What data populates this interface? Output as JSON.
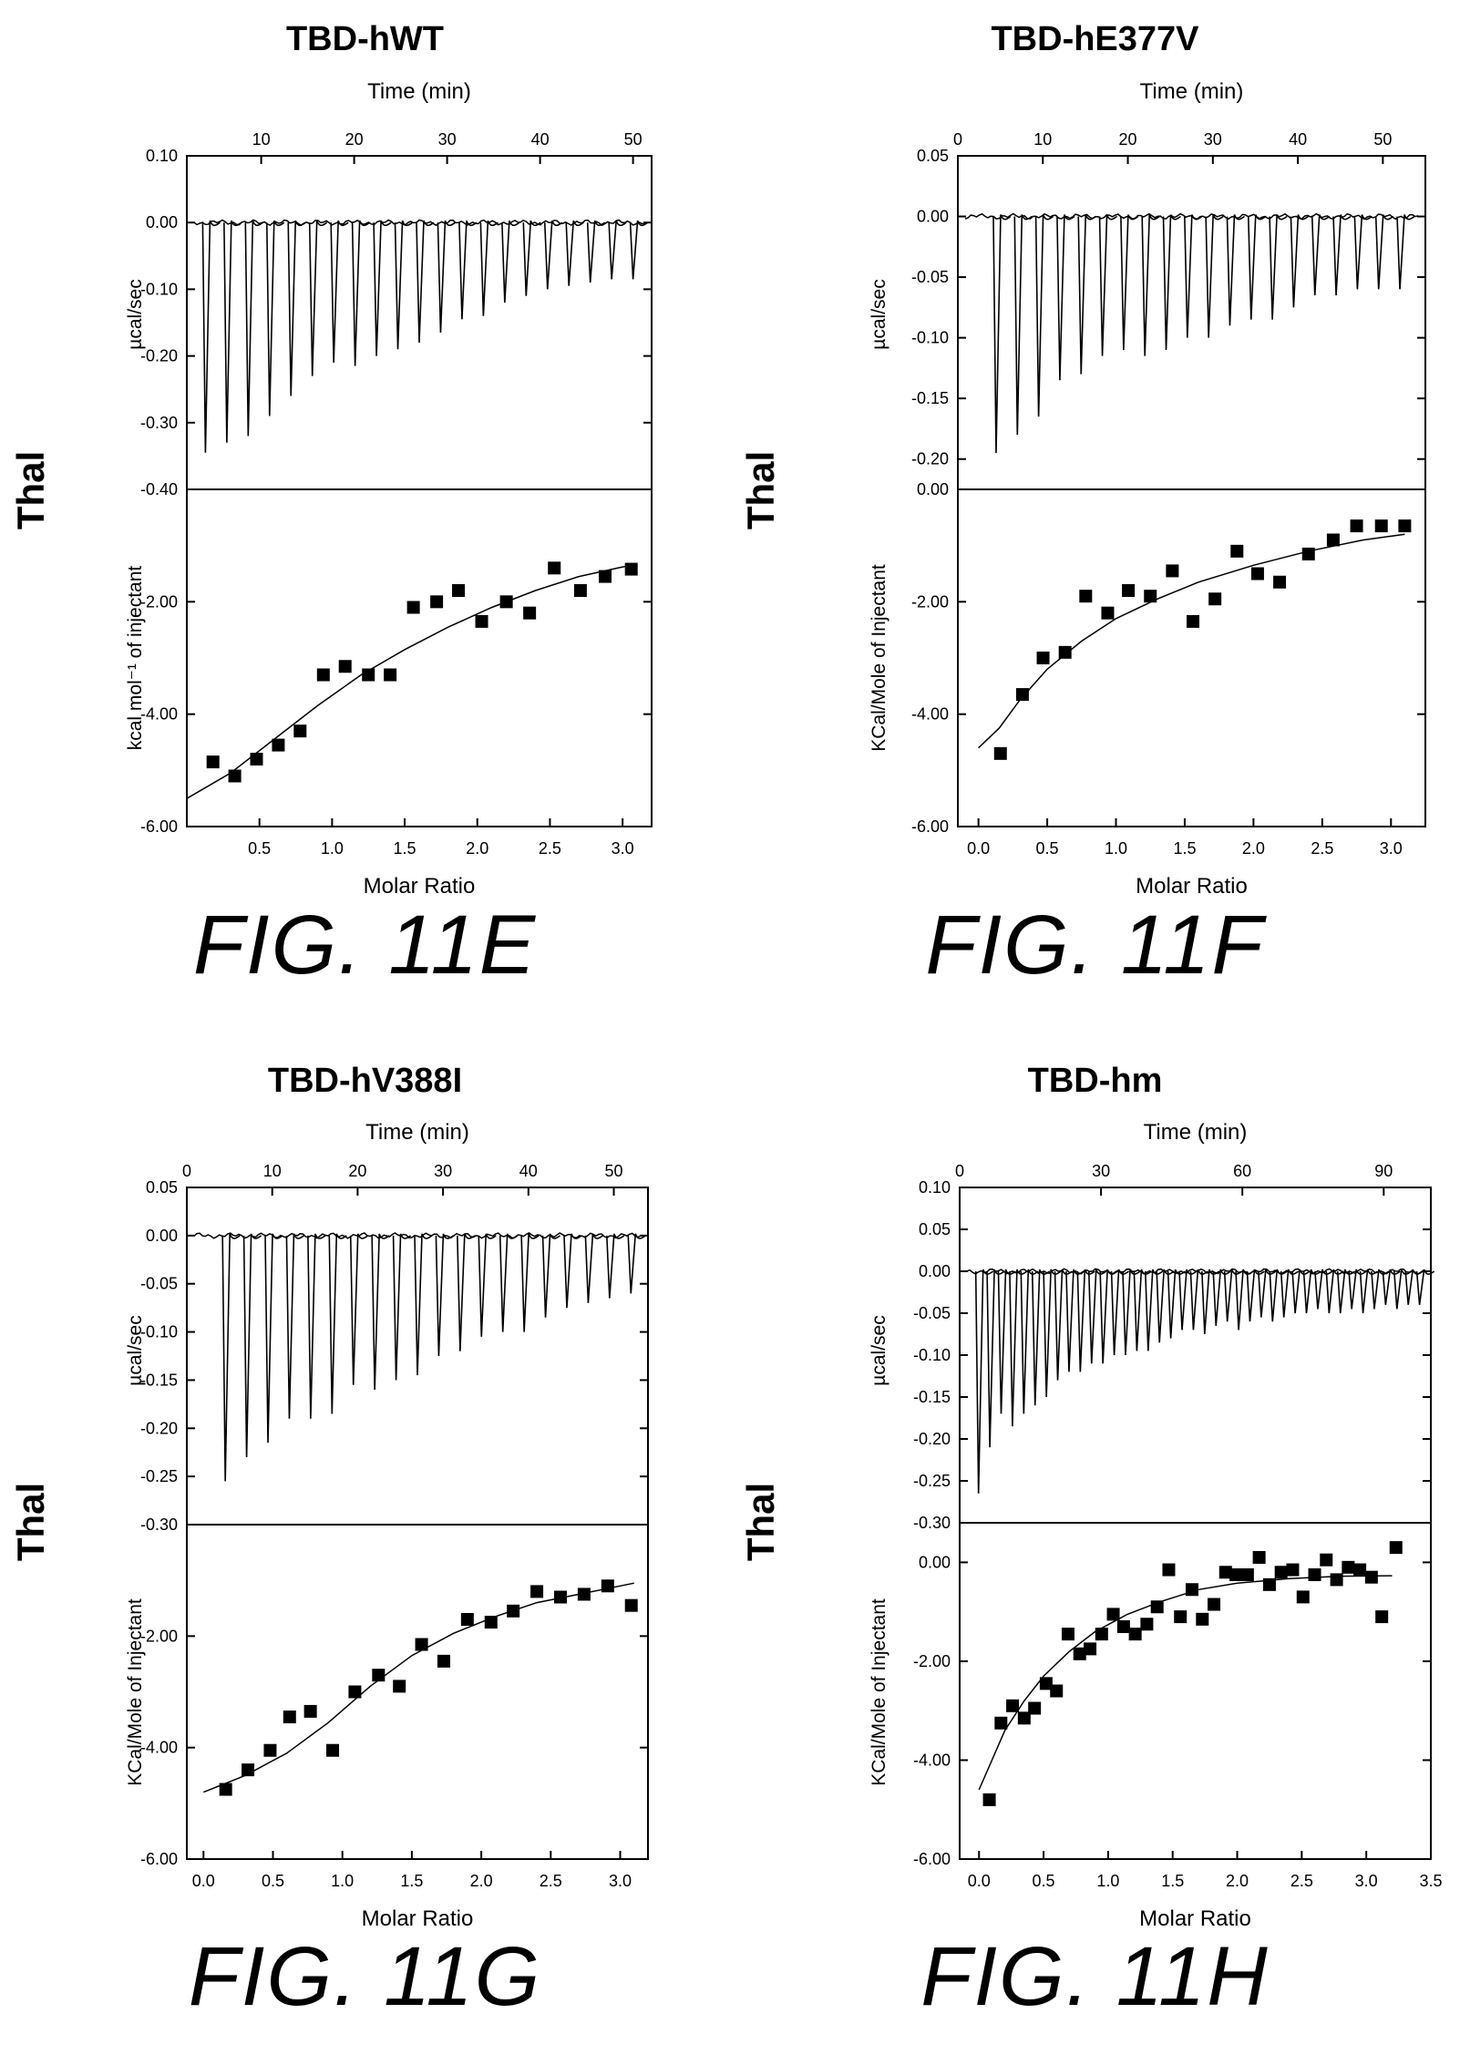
{
  "panels": [
    {
      "title": "TBD-hWT",
      "figure_label": "FIG. 11E",
      "row_label": "Thal",
      "top": {
        "xlabel": "Time (min)",
        "xlim": [
          2,
          52
        ],
        "xticks": [
          10,
          20,
          30,
          40,
          50
        ],
        "xticklabels": [
          "10",
          "20",
          "30",
          "40",
          "50"
        ],
        "ylabel": "µcal/sec",
        "ylim": [
          -0.4,
          0.1
        ],
        "yticks": [
          0.1,
          0.0,
          -0.1,
          -0.2,
          -0.3,
          -0.4
        ],
        "yticklabels": [
          "0.10",
          "0.00",
          "-0.10",
          "-0.20",
          "-0.30",
          "-0.40"
        ]
      },
      "bottom": {
        "xlabel": "Molar Ratio",
        "xlim": [
          0.0,
          3.2
        ],
        "xticks": [
          0.5,
          1.0,
          1.5,
          2.0,
          2.5,
          3.0
        ],
        "xticklabels": [
          "0.5",
          "1.0",
          "1.5",
          "2.0",
          "2.5",
          "3.0"
        ],
        "ylabel": "kcal mol⁻¹ of injectant",
        "ylim": [
          -6.0,
          0.0
        ],
        "yticks": [
          -2,
          -4,
          -6
        ],
        "yticklabels": [
          "-2.00",
          "-4.00",
          "-6.00"
        ]
      }
    },
    {
      "title": "TBD-hE377V",
      "figure_label": "FIG. 11F",
      "row_label": "Thal",
      "top": {
        "xlabel": "Time (min)",
        "xlim": [
          0,
          55
        ],
        "xticks": [
          0,
          10,
          20,
          30,
          40,
          50
        ],
        "xticklabels": [
          "0",
          "10",
          "20",
          "30",
          "40",
          "50"
        ],
        "ylabel": "µcal/sec",
        "ylim": [
          -0.225,
          0.05
        ],
        "yticks": [
          0.05,
          0.0,
          -0.05,
          -0.1,
          -0.15,
          -0.2
        ],
        "yticklabels": [
          "0.05",
          "0.00",
          "-0.05",
          "-0.10",
          "-0.15",
          "-0.20"
        ]
      },
      "bottom": {
        "xlabel": "Molar Ratio",
        "xlim": [
          -0.15,
          3.25
        ],
        "xticks": [
          0,
          0.5,
          1.0,
          1.5,
          2.0,
          2.5,
          3.0
        ],
        "xticklabels": [
          "0.0",
          "0.5",
          "1.0",
          "1.5",
          "2.0",
          "2.5",
          "3.0"
        ],
        "ylabel": "KCal/Mole of Injectant",
        "ylim": [
          -6.0,
          0.0
        ],
        "yticks": [
          0,
          -2,
          -4,
          -6
        ],
        "yticklabels": [
          "0.00",
          "-2.00",
          "-4.00",
          "-6.00"
        ]
      }
    },
    {
      "title": "TBD-hV388I",
      "figure_label": "FIG. 11G",
      "row_label": "Thal",
      "top": {
        "xlabel": "Time (min)",
        "xlim": [
          0,
          54
        ],
        "xticks": [
          0,
          10,
          20,
          30,
          40,
          50
        ],
        "xticklabels": [
          "0",
          "10",
          "20",
          "30",
          "40",
          "50"
        ],
        "ylabel": "µcal/sec",
        "ylim": [
          -0.3,
          0.05
        ],
        "yticks": [
          0.05,
          0.0,
          -0.05,
          -0.1,
          -0.15,
          -0.2,
          -0.25,
          -0.3
        ],
        "yticklabels": [
          "0.05",
          "0.00",
          "-0.05",
          "-0.10",
          "-0.15",
          "-0.20",
          "-0.25",
          "-0.30"
        ]
      },
      "bottom": {
        "xlabel": "Molar Ratio",
        "xlim": [
          -0.12,
          3.2
        ],
        "xticks": [
          0,
          0.5,
          1.0,
          1.5,
          2.0,
          2.5,
          3.0
        ],
        "xticklabels": [
          "0.0",
          "0.5",
          "1.0",
          "1.5",
          "2.0",
          "2.5",
          "3.0"
        ],
        "ylabel": "KCal/Mole of Injectant",
        "ylim": [
          -6.0,
          0.0
        ],
        "yticks": [
          -2,
          -4,
          -6
        ],
        "yticklabels": [
          "-2.00",
          "-4.00",
          "-6.00"
        ]
      }
    },
    {
      "title": "TBD-hm",
      "figure_label": "FIG. 11H",
      "row_label": "Thal",
      "top": {
        "xlabel": "Time (min)",
        "xlim": [
          0,
          100
        ],
        "xticks": [
          0,
          30,
          60,
          90
        ],
        "xticklabels": [
          "0",
          "30",
          "60",
          "90"
        ],
        "ylabel": "µcal/sec",
        "ylim": [
          -0.3,
          0.1
        ],
        "yticks": [
          0.1,
          0.05,
          0.0,
          -0.05,
          -0.1,
          -0.15,
          -0.2,
          -0.25,
          -0.3
        ],
        "yticklabels": [
          "0.10",
          "0.05",
          "0.00",
          "-0.05",
          "-0.10",
          "-0.15",
          "-0.20",
          "-0.25",
          "-0.30"
        ]
      },
      "bottom": {
        "xlabel": "Molar Ratio",
        "xlim": [
          -0.15,
          3.5
        ],
        "xticks": [
          0,
          0.5,
          1.0,
          1.5,
          2.0,
          2.5,
          3.0,
          3.5
        ],
        "xticklabels": [
          "0.0",
          "0.5",
          "1.0",
          "1.5",
          "2.0",
          "2.5",
          "3.0",
          "3.5"
        ],
        "ylabel": "KCal/Mole of Injectant",
        "ylim": [
          -6.0,
          0.8
        ],
        "yticks": [
          0,
          -2,
          -4,
          -6
        ],
        "yticklabels": [
          "0.00",
          "-2.00",
          "-4.00",
          "-6.00"
        ]
      }
    }
  ],
  "chart_data": [
    {
      "type": "line",
      "title": "TBD-hWT",
      "xlabel": "Time (min)",
      "ylabel": "µcal/sec",
      "xlim": [
        2,
        52
      ],
      "ylim": [
        -0.4,
        0.1
      ],
      "series": [
        {
          "x": [
            4,
            6.3,
            8.6,
            10.9,
            13.2,
            15.5,
            17.8,
            20.1,
            22.4,
            24.7,
            27,
            29.3,
            31.6,
            33.9,
            36.2,
            38.5,
            40.8,
            43.1,
            45.4,
            47.7,
            50
          ],
          "values": [
            -0.345,
            -0.33,
            -0.32,
            -0.29,
            -0.26,
            -0.23,
            -0.21,
            -0.215,
            -0.2,
            -0.19,
            -0.18,
            -0.165,
            -0.145,
            -0.14,
            -0.12,
            -0.11,
            -0.1,
            -0.095,
            -0.09,
            -0.085,
            -0.085
          ]
        }
      ]
    },
    {
      "type": "scatter",
      "title": "TBD-hWT",
      "xlabel": "Molar Ratio",
      "ylabel": "kcal mol⁻¹ of injectant",
      "xlim": [
        0.0,
        3.2
      ],
      "ylim": [
        -6.0,
        0.0
      ],
      "series": [
        {
          "x": [
            0.18,
            0.33,
            0.48,
            0.63,
            0.78,
            0.94,
            1.09,
            1.25,
            1.4,
            1.56,
            1.72,
            1.87,
            2.03,
            2.2,
            2.36,
            2.53,
            2.71,
            2.88,
            3.06
          ],
          "values": [
            -4.85,
            -5.1,
            -4.8,
            -4.55,
            -4.3,
            -3.3,
            -3.15,
            -3.3,
            -3.3,
            -2.1,
            -2.0,
            -1.8,
            -2.35,
            -2.0,
            -2.2,
            -1.4,
            -1.8,
            -1.55,
            -1.42
          ]
        },
        {
          "x": [
            0.0,
            0.3,
            0.6,
            0.9,
            1.2,
            1.5,
            1.8,
            2.1,
            2.4,
            2.7,
            3.0,
            3.1
          ],
          "values": [
            -5.5,
            -5.05,
            -4.45,
            -3.85,
            -3.3,
            -2.85,
            -2.45,
            -2.1,
            -1.8,
            -1.55,
            -1.38,
            -1.33
          ]
        }
      ]
    },
    {
      "type": "line",
      "title": "TBD-hE377V",
      "xlabel": "Time (min)",
      "ylabel": "µcal/sec",
      "xlim": [
        0,
        55
      ],
      "ylim": [
        -0.225,
        0.05
      ],
      "series": [
        {
          "x": [
            4.5,
            7,
            9.5,
            12,
            14.5,
            17,
            19.5,
            22,
            24.5,
            27,
            29.5,
            32,
            34.5,
            37,
            39.5,
            42,
            44.5,
            47,
            49.5,
            52
          ],
          "values": [
            -0.195,
            -0.18,
            -0.165,
            -0.135,
            -0.13,
            -0.115,
            -0.11,
            -0.115,
            -0.11,
            -0.1,
            -0.1,
            -0.09,
            -0.085,
            -0.085,
            -0.075,
            -0.065,
            -0.065,
            -0.06,
            -0.06,
            -0.06
          ]
        }
      ]
    },
    {
      "type": "scatter",
      "title": "TBD-hE377V",
      "xlabel": "Molar Ratio",
      "ylabel": "KCal/Mole of Injectant",
      "xlim": [
        -0.15,
        3.25
      ],
      "ylim": [
        -6.0,
        0.0
      ],
      "series": [
        {
          "x": [
            0.16,
            0.32,
            0.47,
            0.63,
            0.78,
            0.94,
            1.09,
            1.25,
            1.41,
            1.56,
            1.72,
            1.88,
            2.03,
            2.19,
            2.4,
            2.58,
            2.75,
            2.93,
            3.1
          ],
          "values": [
            -4.7,
            -3.65,
            -3.0,
            -2.9,
            -1.9,
            -2.2,
            -1.8,
            -1.9,
            -1.45,
            -2.35,
            -1.95,
            -1.1,
            -1.5,
            -1.65,
            -1.15,
            -0.9,
            -0.65,
            -0.65,
            -0.65
          ]
        },
        {
          "x": [
            0.0,
            0.15,
            0.3,
            0.5,
            0.75,
            1.0,
            1.3,
            1.6,
            2.0,
            2.4,
            2.8,
            3.1
          ],
          "values": [
            -4.6,
            -4.25,
            -3.75,
            -3.2,
            -2.7,
            -2.3,
            -1.95,
            -1.65,
            -1.35,
            -1.1,
            -0.9,
            -0.8
          ]
        }
      ]
    },
    {
      "type": "line",
      "title": "TBD-hV388I",
      "xlabel": "Time (min)",
      "ylabel": "µcal/sec",
      "xlim": [
        0,
        54
      ],
      "ylim": [
        -0.3,
        0.05
      ],
      "series": [
        {
          "x": [
            4.5,
            7,
            9.5,
            12,
            14.5,
            17,
            19.5,
            22,
            24.5,
            27,
            29.5,
            32,
            34.5,
            37,
            39.5,
            42,
            44.5,
            47,
            49.5,
            52
          ],
          "values": [
            -0.255,
            -0.23,
            -0.215,
            -0.19,
            -0.19,
            -0.185,
            -0.155,
            -0.16,
            -0.15,
            -0.145,
            -0.125,
            -0.12,
            -0.105,
            -0.1,
            -0.1,
            -0.085,
            -0.075,
            -0.07,
            -0.065,
            -0.06
          ]
        }
      ]
    },
    {
      "type": "scatter",
      "title": "TBD-hV388I",
      "xlabel": "Molar Ratio",
      "ylabel": "KCal/Mole of Injectant",
      "xlim": [
        -0.12,
        3.2
      ],
      "ylim": [
        -6.0,
        0.0
      ],
      "series": [
        {
          "x": [
            0.16,
            0.32,
            0.48,
            0.62,
            0.77,
            0.93,
            1.09,
            1.26,
            1.41,
            1.57,
            1.73,
            1.9,
            2.07,
            2.23,
            2.4,
            2.57,
            2.74,
            2.91,
            3.08
          ],
          "values": [
            -4.75,
            -4.4,
            -4.05,
            -3.45,
            -3.35,
            -4.05,
            -3.0,
            -2.7,
            -2.9,
            -2.15,
            -2.45,
            -1.7,
            -1.75,
            -1.55,
            -1.2,
            -1.3,
            -1.25,
            -1.1,
            -1.45
          ]
        },
        {
          "x": [
            0.0,
            0.3,
            0.6,
            0.9,
            1.2,
            1.5,
            1.8,
            2.1,
            2.4,
            2.7,
            3.1
          ],
          "values": [
            -4.8,
            -4.5,
            -4.1,
            -3.55,
            -2.9,
            -2.35,
            -1.95,
            -1.65,
            -1.4,
            -1.25,
            -1.05
          ]
        }
      ]
    },
    {
      "type": "line",
      "title": "TBD-hm",
      "xlabel": "Time (min)",
      "ylabel": "µcal/sec",
      "xlim": [
        0,
        100
      ],
      "ylim": [
        -0.3,
        0.1
      ],
      "series": [
        {
          "x": [
            4,
            6.4,
            8.8,
            11.2,
            13.6,
            16,
            18.4,
            20.8,
            23.2,
            25.6,
            28,
            30.4,
            32.8,
            35.2,
            37.6,
            40,
            42.4,
            44.8,
            47.2,
            49.6,
            52,
            54.4,
            56.8,
            59.2,
            61.6,
            64,
            66.4,
            68.8,
            71.2,
            73.6,
            76,
            78.4,
            80.8,
            83.2,
            85.6,
            88,
            90.4,
            92.8,
            95.2,
            97.6
          ],
          "values": [
            -0.265,
            -0.21,
            -0.17,
            -0.185,
            -0.17,
            -0.16,
            -0.15,
            -0.13,
            -0.12,
            -0.12,
            -0.11,
            -0.11,
            -0.1,
            -0.1,
            -0.095,
            -0.095,
            -0.085,
            -0.08,
            -0.07,
            -0.07,
            -0.075,
            -0.065,
            -0.06,
            -0.07,
            -0.06,
            -0.055,
            -0.06,
            -0.055,
            -0.05,
            -0.05,
            -0.045,
            -0.05,
            -0.05,
            -0.045,
            -0.05,
            -0.045,
            -0.04,
            -0.045,
            -0.04,
            -0.04
          ]
        }
      ]
    },
    {
      "type": "scatter",
      "title": "TBD-hm",
      "xlabel": "Molar Ratio",
      "ylabel": "KCal/Mole of Injectant",
      "xlim": [
        -0.15,
        3.5
      ],
      "ylim": [
        -6.0,
        0.8
      ],
      "series": [
        {
          "x": [
            0.08,
            0.17,
            0.26,
            0.35,
            0.43,
            0.52,
            0.6,
            0.69,
            0.78,
            0.86,
            0.95,
            1.04,
            1.12,
            1.21,
            1.3,
            1.38,
            1.47,
            1.56,
            1.65,
            1.73,
            1.82,
            1.91,
            1.99,
            2.08,
            2.17,
            2.25,
            2.34,
            2.43,
            2.51,
            2.6,
            2.69,
            2.77,
            2.86,
            2.95,
            3.04,
            3.12,
            3.23
          ],
          "values": [
            -4.8,
            -3.25,
            -2.9,
            -3.15,
            -2.95,
            -2.45,
            -2.6,
            -1.45,
            -1.85,
            -1.75,
            -1.45,
            -1.05,
            -1.3,
            -1.45,
            -1.25,
            -0.9,
            -0.15,
            -1.1,
            -0.55,
            -1.15,
            -0.85,
            -0.2,
            -0.25,
            -0.25,
            0.1,
            -0.45,
            -0.2,
            -0.15,
            -0.7,
            -0.25,
            0.05,
            -0.35,
            -0.1,
            -0.15,
            -0.3,
            -1.1,
            0.3
          ]
        },
        {
          "x": [
            0.0,
            0.1,
            0.2,
            0.35,
            0.5,
            0.7,
            0.9,
            1.15,
            1.4,
            1.7,
            2.0,
            2.4,
            2.8,
            3.2
          ],
          "values": [
            -4.6,
            -4.0,
            -3.4,
            -2.8,
            -2.3,
            -1.8,
            -1.4,
            -1.05,
            -0.8,
            -0.55,
            -0.42,
            -0.33,
            -0.28,
            -0.27
          ]
        }
      ]
    }
  ]
}
